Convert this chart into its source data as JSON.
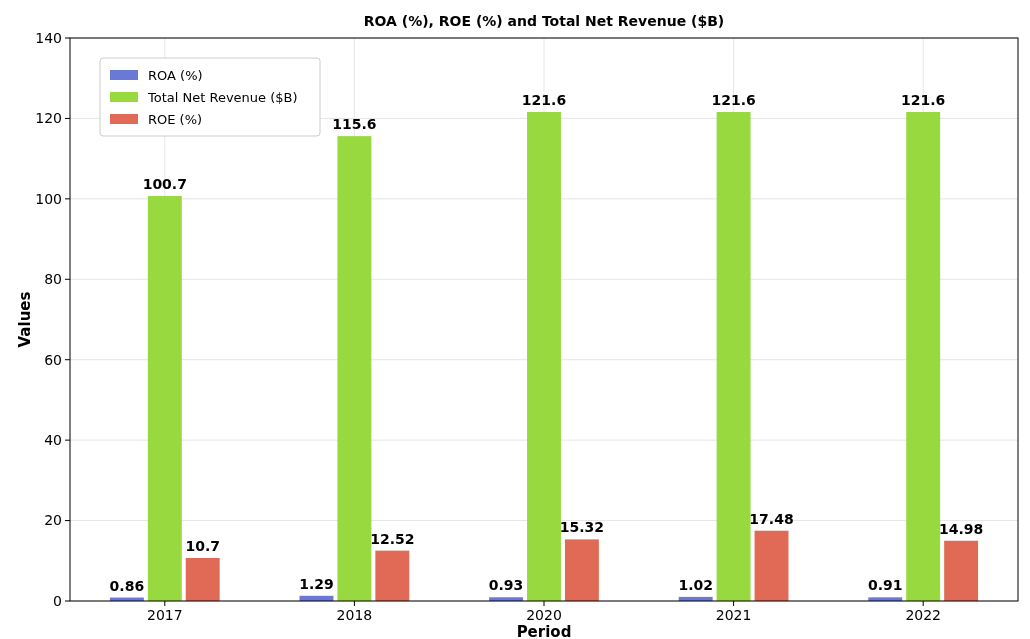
{
  "chart_data": {
    "type": "bar",
    "title": "ROA (%), ROE (%) and Total Net Revenue ($B)",
    "xlabel": "Period",
    "ylabel": "Values",
    "categories": [
      "2017",
      "2018",
      "2020",
      "2021",
      "2022"
    ],
    "series": [
      {
        "name": "ROA (%)",
        "color": "#6a78d6",
        "values": [
          0.86,
          1.29,
          0.93,
          1.02,
          0.91
        ]
      },
      {
        "name": "Total Net Revenue ($B)",
        "color": "#97d93f",
        "values": [
          100.7,
          115.6,
          121.6,
          121.6,
          121.6
        ]
      },
      {
        "name": "ROE (%)",
        "color": "#e06a55",
        "values": [
          10.7,
          12.52,
          15.32,
          17.48,
          14.98
        ]
      }
    ],
    "ylim": [
      0,
      140
    ],
    "yticks": [
      0,
      20,
      40,
      60,
      80,
      100,
      120,
      140
    ],
    "grid": true,
    "legend": "top left",
    "data_labels": true
  }
}
